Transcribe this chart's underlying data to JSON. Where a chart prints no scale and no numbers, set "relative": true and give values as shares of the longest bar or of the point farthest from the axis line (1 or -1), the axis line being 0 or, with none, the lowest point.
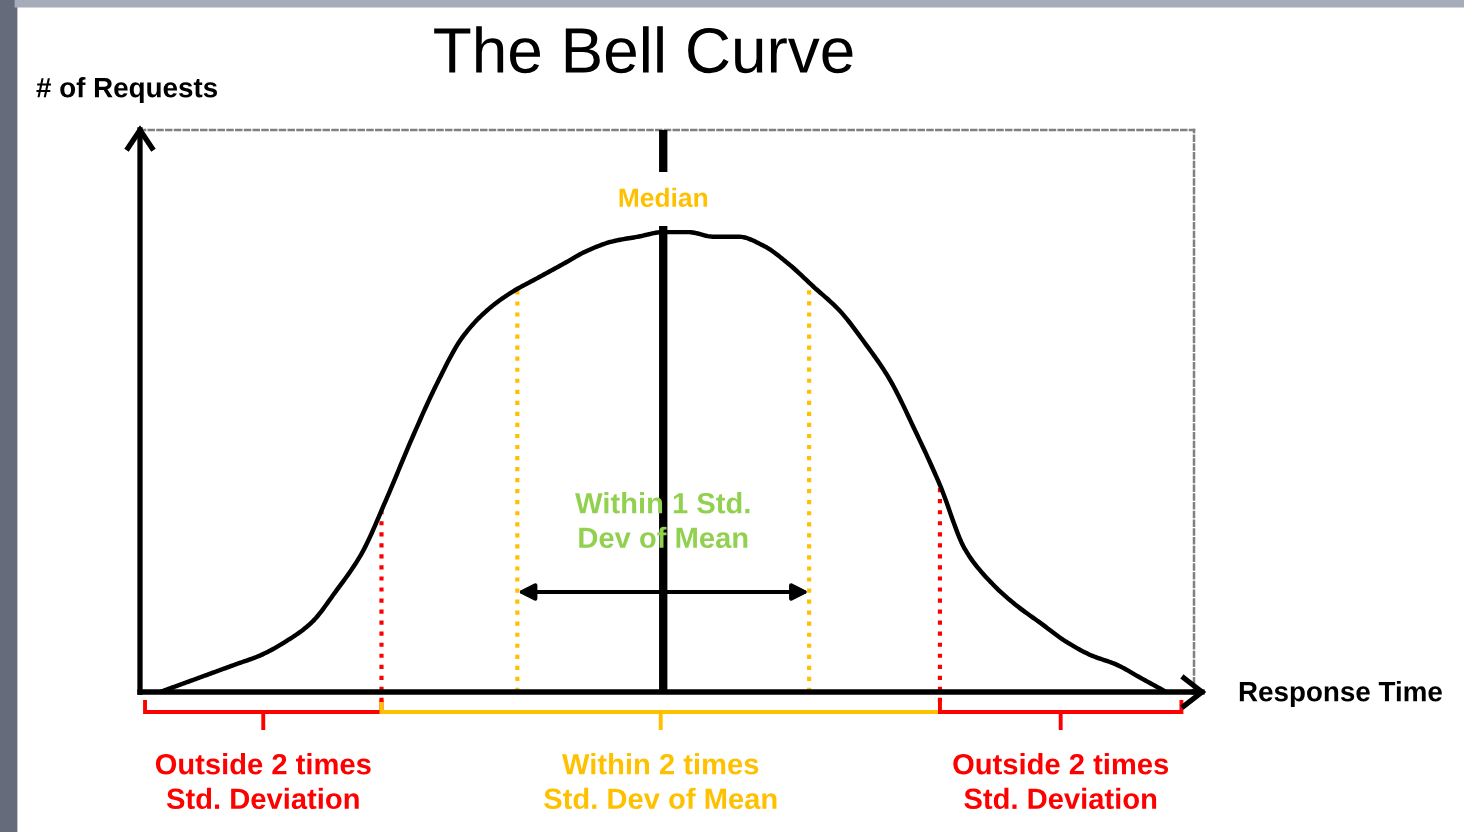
{
  "chart_data": {
    "type": "line",
    "title": "The Bell Curve",
    "xlabel": "Response Time",
    "ylabel": "# of Requests",
    "relative": true,
    "line_style": "solid",
    "categories": [
      null,
      null,
      null,
      null,
      null,
      null,
      null,
      null,
      null,
      null,
      null,
      null,
      null,
      null,
      null,
      null,
      null,
      null,
      null,
      null,
      null,
      null,
      null,
      null,
      null,
      null,
      null,
      null,
      null,
      null,
      null,
      null,
      null,
      null,
      null,
      null,
      null,
      null,
      null,
      null,
      null
    ],
    "series": [
      {
        "color": "#000000",
        "values": [
          0,
          0.02,
          0.04,
          0.06,
          0.08,
          0.11,
          0.15,
          0.22,
          0.3,
          0.42,
          0.55,
          0.67,
          0.77,
          0.83,
          0.87,
          0.9,
          0.93,
          0.96,
          0.98,
          0.99,
          1,
          1,
          0.99,
          0.99,
          0.97,
          0.93,
          0.88,
          0.83,
          0.76,
          0.68,
          0.57,
          0.45,
          0.31,
          0.24,
          0.19,
          0.15,
          0.11,
          0.08,
          0.06,
          0.03,
          0
        ]
      }
    ],
    "annotations": [
      "Median",
      "Within 1 Std.\nDev of Mean",
      "Outside 2 times\nStd. Deviation",
      "Within 2 times\nStd. Dev of Mean",
      "Outside 2 times\nStd. Deviation"
    ]
  }
}
